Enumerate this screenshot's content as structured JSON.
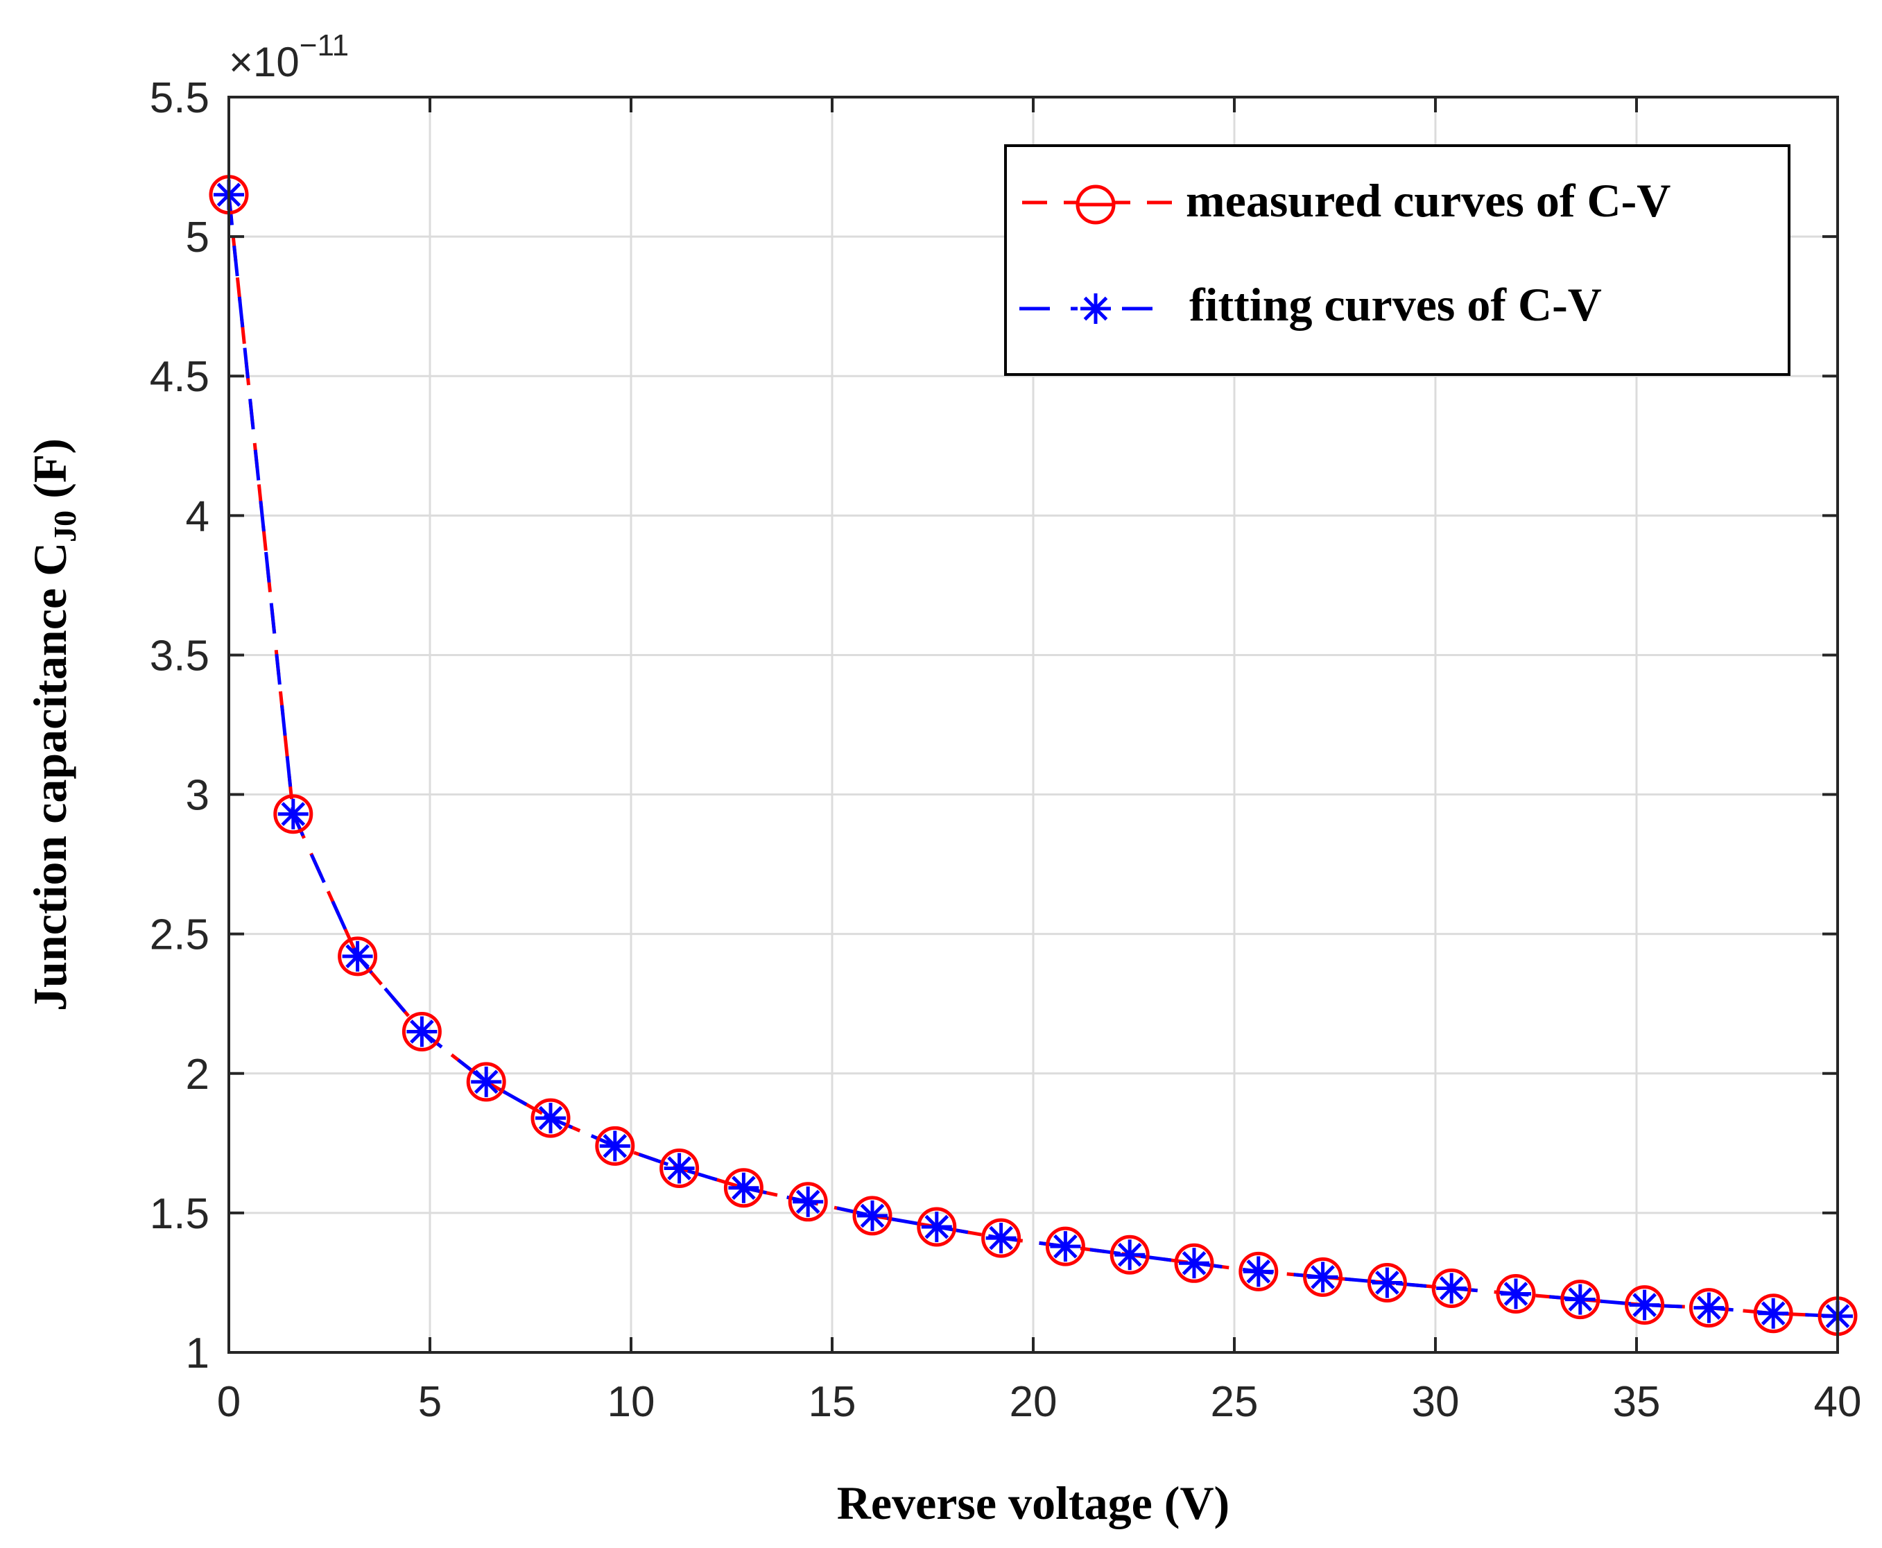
{
  "chart_data": {
    "type": "line",
    "xlabel": "Reverse voltage (V)",
    "ylabel_main": "Junction capacitance C",
    "ylabel_sub": "J0",
    "ylabel_unit": " (F)",
    "y_multiplier_base": "×10",
    "y_multiplier_exp": "−11",
    "xlim": [
      0,
      40
    ],
    "ylim": [
      1,
      5.5
    ],
    "x_ticks": [
      0,
      5,
      10,
      15,
      20,
      25,
      30,
      35,
      40
    ],
    "y_ticks": [
      1,
      1.5,
      2,
      2.5,
      3,
      3.5,
      4,
      4.5,
      5,
      5.5
    ],
    "grid": true,
    "legend_position": "top-right",
    "x": [
      0,
      1.6,
      3.2,
      4.8,
      6.4,
      8,
      9.6,
      11.2,
      12.8,
      14.4,
      16,
      17.6,
      19.2,
      20.8,
      22.4,
      24,
      25.6,
      27.2,
      28.8,
      30.4,
      32,
      33.6,
      35.2,
      36.8,
      38.4,
      40
    ],
    "series": [
      {
        "name": "measured curves of C-V",
        "color": "#ff0000",
        "marker": "circle",
        "line": "dashed",
        "values": [
          5.15,
          2.93,
          2.42,
          2.15,
          1.97,
          1.84,
          1.74,
          1.66,
          1.59,
          1.54,
          1.49,
          1.45,
          1.41,
          1.38,
          1.35,
          1.32,
          1.29,
          1.27,
          1.25,
          1.23,
          1.21,
          1.19,
          1.17,
          1.16,
          1.14,
          1.13
        ]
      },
      {
        "name": "fitting curves of C-V",
        "color": "#0000ff",
        "marker": "asterisk",
        "line": "dashed",
        "values": [
          5.15,
          2.93,
          2.42,
          2.15,
          1.97,
          1.84,
          1.74,
          1.66,
          1.59,
          1.54,
          1.49,
          1.45,
          1.41,
          1.38,
          1.35,
          1.32,
          1.29,
          1.27,
          1.25,
          1.23,
          1.21,
          1.19,
          1.17,
          1.16,
          1.14,
          1.13
        ]
      }
    ]
  }
}
